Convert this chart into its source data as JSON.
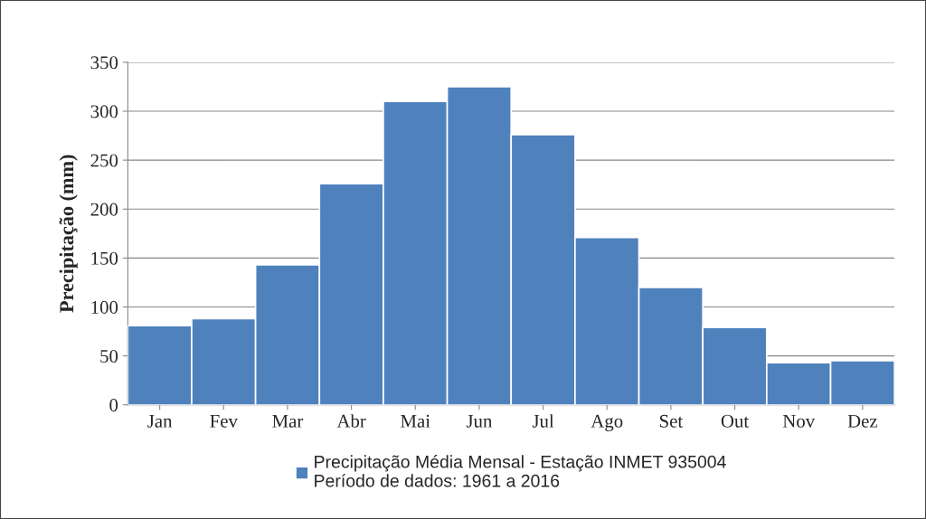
{
  "chart_data": {
    "type": "bar",
    "ylabel": "Precipitação (mm)",
    "categories": [
      "Jan",
      "Fev",
      "Mar",
      "Abr",
      "Mai",
      "Jun",
      "Jul",
      "Ago",
      "Set",
      "Out",
      "Nov",
      "Dez"
    ],
    "series": [
      {
        "name": "Precipitação Média Mensal - Estação INMET 935004\nPeríodo de dados: 1961 a 2016",
        "color": "#4f81bd",
        "values": [
          81,
          88,
          143,
          226,
          310,
          325,
          276,
          171,
          120,
          79,
          43,
          45
        ]
      }
    ],
    "ylim": [
      0,
      350
    ],
    "yticks": [
      0,
      50,
      100,
      150,
      200,
      250,
      300,
      350
    ],
    "grid": "y",
    "legend": "bottom"
  }
}
